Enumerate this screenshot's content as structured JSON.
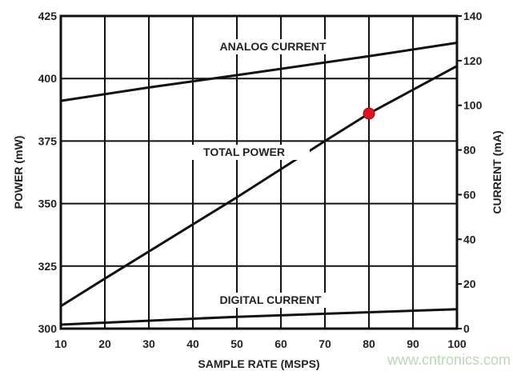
{
  "chart_data": {
    "type": "line",
    "xlabel": "SAMPLE RATE (MSPS)",
    "ylabel": "POWER (mW)",
    "y2label": "CURRENT (mA)",
    "xlim": [
      10,
      100
    ],
    "ylim": [
      300,
      425
    ],
    "y2lim": [
      0,
      140
    ],
    "xticks": [
      10,
      20,
      30,
      40,
      50,
      60,
      70,
      80,
      90,
      100
    ],
    "yticks": [
      300,
      325,
      350,
      375,
      400,
      425
    ],
    "y2ticks": [
      0,
      20,
      40,
      60,
      80,
      100,
      120,
      140
    ],
    "grid": true,
    "series": [
      {
        "name": "ANALOG CURRENT",
        "axis": "right",
        "x": [
          10,
          30,
          50,
          80,
          100
        ],
        "y": [
          102,
          108,
          113.5,
          122,
          128
        ]
      },
      {
        "name": "TOTAL POWER",
        "axis": "left",
        "x": [
          10,
          20,
          50,
          70,
          80,
          100
        ],
        "y": [
          309,
          320,
          352.5,
          375,
          386,
          405
        ]
      },
      {
        "name": "DIGITAL CURRENT",
        "axis": "right",
        "x": [
          10,
          50,
          100
        ],
        "y": [
          1.8,
          5.3,
          8.7
        ]
      }
    ],
    "highlight_point": {
      "series": "TOTAL POWER",
      "x": 80,
      "y": 386,
      "color": "#e0141e"
    }
  },
  "watermark": "www.cntronics.com"
}
